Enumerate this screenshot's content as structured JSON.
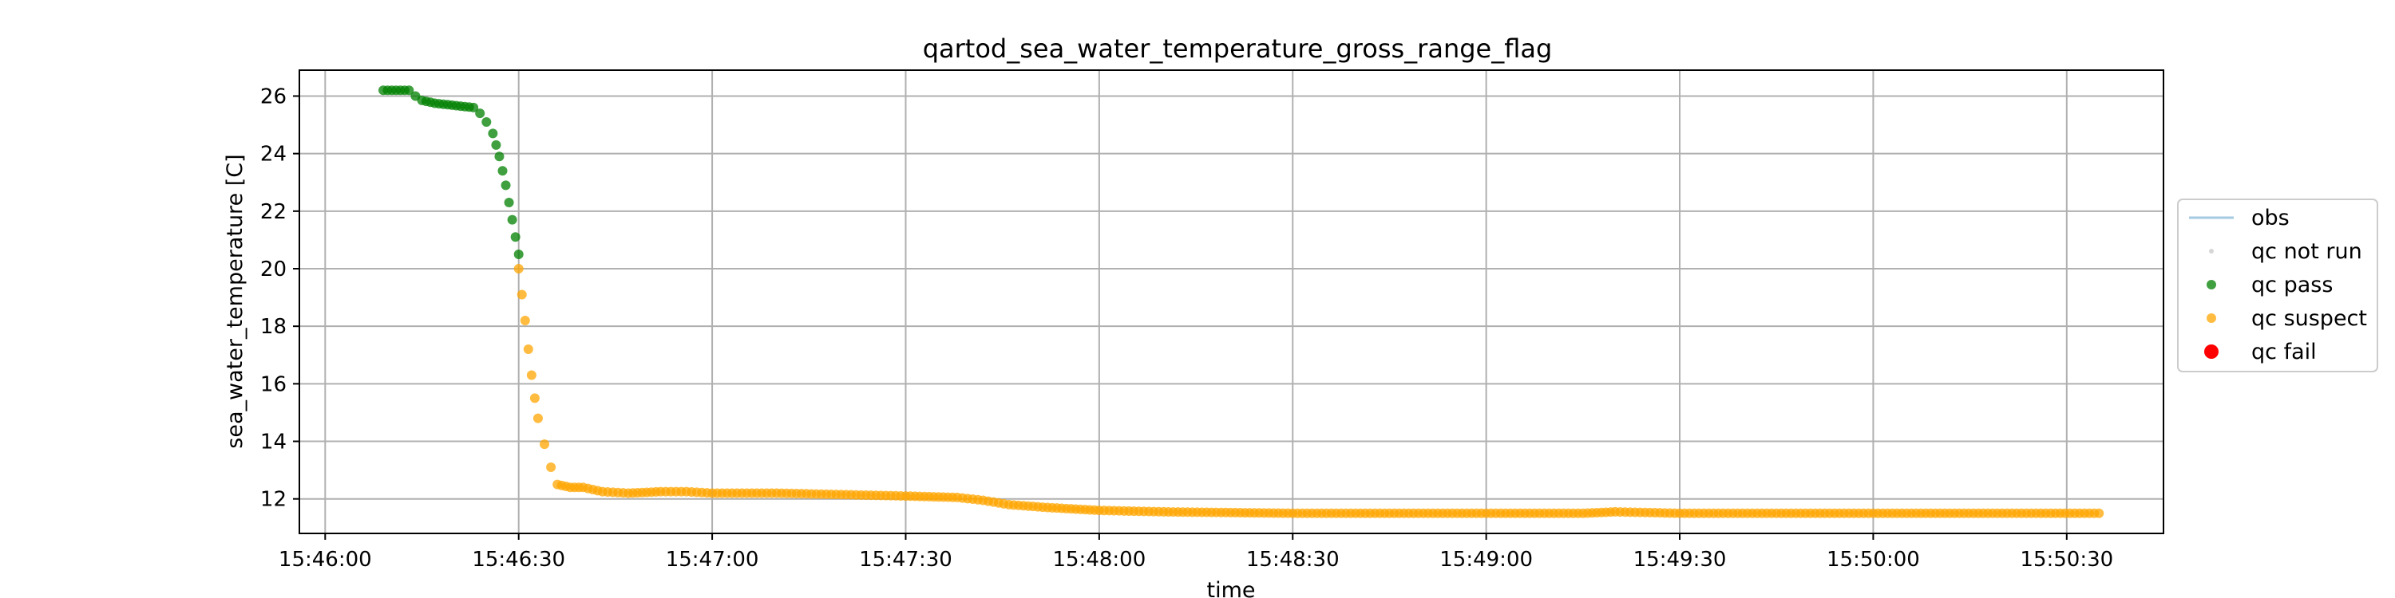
{
  "chart_data": {
    "type": "scatter",
    "title": "qartod_sea_water_temperature_gross_range_flag",
    "xlabel": "time",
    "ylabel": "sea_water_temperature [C]",
    "x_ticks": [
      "15:46:00",
      "15:46:30",
      "15:47:00",
      "15:47:30",
      "15:48:00",
      "15:48:30",
      "15:49:00",
      "15:49:30",
      "15:50:00",
      "15:50:30"
    ],
    "y_ticks": [
      12,
      14,
      16,
      18,
      20,
      22,
      24,
      26
    ],
    "xlim": [
      "15:45:56",
      "15:50:45"
    ],
    "ylim": [
      10.8,
      26.9
    ],
    "grid": true,
    "legend_placement": "center-right, outside plot",
    "legend": [
      {
        "label": "obs",
        "marker": "line",
        "color": "#1f77b4"
      },
      {
        "label": "qc not run",
        "marker": "small-dot",
        "color": "#c8c8c8"
      },
      {
        "label": "qc pass",
        "marker": "dot",
        "color": "#008000"
      },
      {
        "label": "qc suspect",
        "marker": "dot",
        "color": "#ffa500"
      },
      {
        "label": "qc fail",
        "marker": "dot",
        "color": "#ff0000"
      }
    ],
    "series": [
      {
        "name": "qc pass",
        "color": "#008000",
        "points": [
          [
            "15:46:09",
            26.2
          ],
          [
            "15:46:11",
            26.2
          ],
          [
            "15:46:13",
            26.2
          ],
          [
            "15:46:14",
            26.0
          ],
          [
            "15:46:15",
            25.85
          ],
          [
            "15:46:17",
            25.75
          ],
          [
            "15:46:19",
            25.7
          ],
          [
            "15:46:21",
            25.65
          ],
          [
            "15:46:23",
            25.6
          ],
          [
            "15:46:24",
            25.4
          ],
          [
            "15:46:25",
            25.1
          ],
          [
            "15:46:26",
            24.7
          ],
          [
            "15:46:26.5",
            24.3
          ],
          [
            "15:46:27",
            23.9
          ],
          [
            "15:46:27.5",
            23.4
          ],
          [
            "15:46:28",
            22.9
          ],
          [
            "15:46:28.5",
            22.3
          ],
          [
            "15:46:29",
            21.7
          ],
          [
            "15:46:29.5",
            21.1
          ],
          [
            "15:46:30",
            20.5
          ]
        ]
      },
      {
        "name": "qc suspect",
        "color": "#ffa500",
        "points": [
          [
            "15:46:30",
            20.0
          ],
          [
            "15:46:30.5",
            19.1
          ],
          [
            "15:46:31",
            18.2
          ],
          [
            "15:46:31.5",
            17.2
          ],
          [
            "15:46:32",
            16.3
          ],
          [
            "15:46:32.5",
            15.5
          ],
          [
            "15:46:33",
            14.8
          ],
          [
            "15:46:34",
            13.9
          ],
          [
            "15:46:35",
            13.1
          ],
          [
            "15:46:36",
            12.5
          ],
          [
            "15:46:38",
            12.4
          ],
          [
            "15:46:40",
            12.4
          ],
          [
            "15:46:43",
            12.25
          ],
          [
            "15:46:47",
            12.2
          ],
          [
            "15:46:52",
            12.25
          ],
          [
            "15:46:56",
            12.25
          ],
          [
            "15:47:00",
            12.2
          ],
          [
            "15:47:10",
            12.2
          ],
          [
            "15:47:20",
            12.15
          ],
          [
            "15:47:30",
            12.1
          ],
          [
            "15:47:38",
            12.05
          ],
          [
            "15:47:42",
            11.95
          ],
          [
            "15:47:46",
            11.8
          ],
          [
            "15:47:52",
            11.7
          ],
          [
            "15:48:00",
            11.6
          ],
          [
            "15:48:10",
            11.55
          ],
          [
            "15:48:30",
            11.5
          ],
          [
            "15:49:00",
            11.5
          ],
          [
            "15:49:15",
            11.5
          ],
          [
            "15:49:20",
            11.55
          ],
          [
            "15:49:30",
            11.5
          ],
          [
            "15:50:00",
            11.5
          ],
          [
            "15:50:20",
            11.5
          ],
          [
            "15:50:35",
            11.5
          ]
        ]
      },
      {
        "name": "qc not run",
        "color": "#c8c8c8",
        "points": []
      },
      {
        "name": "qc fail",
        "color": "#ff0000",
        "points": []
      }
    ]
  }
}
